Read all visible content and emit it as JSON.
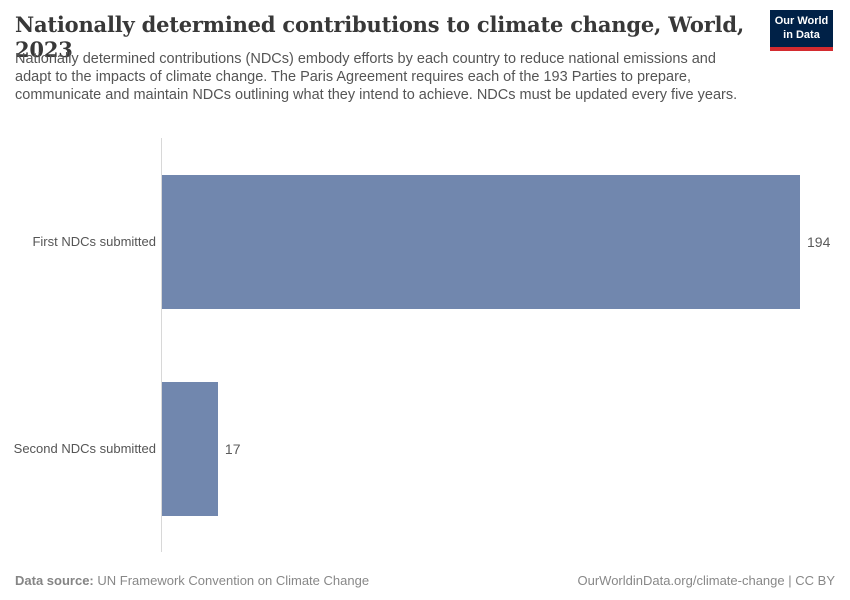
{
  "header": {
    "title": "Nationally determined contributions to climate change, World, 2023",
    "subtitle": "Nationally determined contributions (NDCs) embody efforts by each country to reduce national emissions and adapt to the impacts of climate change. The Paris Agreement requires each of the 193 Parties to prepare, communicate and maintain NDCs outlining what they intend to achieve. NDCs must be updated every five years.",
    "logo": {
      "line1": "Our World",
      "line2": "in Data"
    }
  },
  "chart_data": {
    "type": "bar",
    "orientation": "horizontal",
    "title": "Nationally determined contributions to climate change, World, 2023",
    "categories": [
      "First NDCs submitted",
      "Second NDCs submitted"
    ],
    "values": [
      194,
      17
    ],
    "value_labels": [
      "194",
      "17"
    ],
    "xlabel": "",
    "ylabel": "",
    "xlim": [
      0,
      194
    ],
    "grid": false,
    "legend": "none",
    "bar_color": "#7187ae"
  },
  "footer": {
    "source_label": "Data source:",
    "source_value": "UN Framework Convention on Climate Change",
    "url": "OurWorldinData.org/climate-change",
    "separator": "|",
    "license": "CC BY"
  },
  "colors": {
    "bar": "#7187ae",
    "logo_bg": "#002147",
    "logo_red": "#d42b2f",
    "title_text": "#383838",
    "body_text": "#555555",
    "footer_text": "#888888",
    "axis_line": "#d8d8d8"
  }
}
